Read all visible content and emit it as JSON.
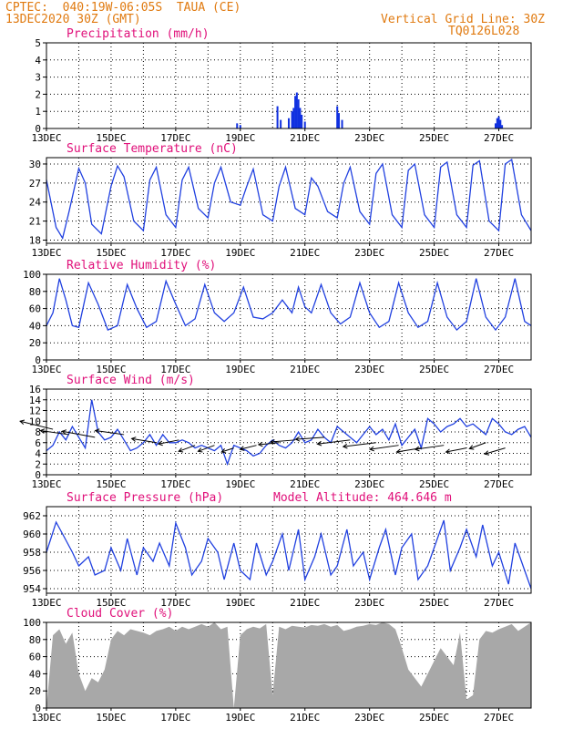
{
  "header": {
    "line1": "CPTEC:  040:19W-06:05S  TAUA (CE)",
    "line2": "13DEC2020 30Z (GMT)",
    "grid_note": "Vertical Grid Line: 30Z",
    "model_code": "TQ0126L028"
  },
  "colors": {
    "header_text": "#e07a10",
    "panel_title": "#e0107a",
    "series_line": "#2040e0",
    "precip_bar": "#1030e0",
    "cloud_fill": "#a8a8a8",
    "grid": "#000000"
  },
  "chart_data": [
    {
      "type": "bar",
      "title": "Precipitation (mm/h)",
      "ylim": [
        0,
        5
      ],
      "yticks": [
        0,
        1,
        2,
        3,
        4,
        5
      ],
      "xlim": [
        13,
        28
      ],
      "xticks": [
        "13DEC",
        "15DEC",
        "17DEC",
        "19DEC",
        "21DEC",
        "23DEC",
        "25DEC",
        "27DEC"
      ],
      "x": [
        18.9,
        19.0,
        20.15,
        20.25,
        20.5,
        20.6,
        20.65,
        20.7,
        20.75,
        20.8,
        20.85,
        20.9,
        21.0,
        22.0,
        22.05,
        22.15,
        26.9,
        26.95,
        27.0,
        27.05,
        27.1
      ],
      "values": [
        0.3,
        0.2,
        1.3,
        0.5,
        0.6,
        1.0,
        1.2,
        1.9,
        2.1,
        1.7,
        1.2,
        0.8,
        0.4,
        1.3,
        0.9,
        0.5,
        0.3,
        0.6,
        0.7,
        0.5,
        0.2
      ]
    },
    {
      "type": "line",
      "title": "Surface Temperature (nC)",
      "ylim": [
        17.5,
        31
      ],
      "yticks": [
        18,
        21,
        24,
        27,
        30
      ],
      "xlim": [
        13,
        28
      ],
      "xticks": [
        "13DEC",
        "15DEC",
        "17DEC",
        "19DEC",
        "21DEC",
        "23DEC",
        "25DEC",
        "27DEC"
      ],
      "x": [
        13.0,
        13.1,
        13.3,
        13.5,
        13.7,
        14.0,
        14.2,
        14.4,
        14.7,
        15.0,
        15.2,
        15.4,
        15.7,
        16.0,
        16.2,
        16.4,
        16.7,
        17.0,
        17.2,
        17.4,
        17.7,
        18.0,
        18.2,
        18.4,
        18.7,
        19.0,
        19.2,
        19.4,
        19.7,
        20.0,
        20.2,
        20.4,
        20.7,
        21.0,
        21.2,
        21.4,
        21.7,
        22.0,
        22.2,
        22.4,
        22.7,
        23.0,
        23.2,
        23.4,
        23.7,
        24.0,
        24.2,
        24.4,
        24.7,
        25.0,
        25.2,
        25.4,
        25.7,
        26.0,
        26.2,
        26.4,
        26.7,
        27.0,
        27.2,
        27.4,
        27.7,
        28.0
      ],
      "values": [
        27.5,
        25.0,
        20.0,
        18.3,
        22.5,
        29.3,
        27.0,
        20.5,
        19.0,
        26.5,
        29.7,
        28.0,
        21.0,
        19.5,
        27.5,
        29.5,
        22.0,
        20.0,
        27.5,
        29.5,
        23.0,
        21.5,
        27.0,
        29.5,
        24.0,
        23.5,
        26.5,
        29.2,
        22.0,
        21.0,
        26.5,
        29.5,
        23.0,
        22.0,
        27.8,
        26.5,
        22.5,
        21.5,
        27.0,
        29.5,
        22.5,
        20.5,
        28.5,
        30.0,
        22.0,
        20.0,
        29.0,
        30.0,
        22.0,
        20.0,
        29.5,
        30.3,
        22.0,
        20.0,
        29.8,
        30.5,
        21.0,
        19.5,
        30.0,
        30.7,
        22.0,
        19.5
      ]
    },
    {
      "type": "line",
      "title": "Relative Humidity (%)",
      "ylim": [
        0,
        100
      ],
      "yticks": [
        0,
        20,
        40,
        60,
        80,
        100
      ],
      "xlim": [
        13,
        28
      ],
      "xticks": [
        "13DEC",
        "15DEC",
        "17DEC",
        "19DEC",
        "21DEC",
        "23DEC",
        "25DEC",
        "27DEC"
      ],
      "x": [
        13.0,
        13.2,
        13.4,
        13.6,
        13.8,
        14.0,
        14.3,
        14.6,
        14.9,
        15.2,
        15.5,
        15.8,
        16.1,
        16.4,
        16.7,
        17.0,
        17.3,
        17.6,
        17.9,
        18.2,
        18.5,
        18.8,
        19.1,
        19.4,
        19.7,
        20.0,
        20.3,
        20.6,
        20.8,
        21.0,
        21.2,
        21.5,
        21.8,
        22.1,
        22.4,
        22.7,
        23.0,
        23.3,
        23.6,
        23.9,
        24.2,
        24.5,
        24.8,
        25.1,
        25.4,
        25.7,
        26.0,
        26.3,
        26.6,
        26.9,
        27.2,
        27.5,
        27.8,
        28.0
      ],
      "values": [
        40,
        55,
        95,
        70,
        40,
        38,
        90,
        65,
        35,
        40,
        88,
        60,
        38,
        45,
        92,
        65,
        40,
        48,
        88,
        55,
        45,
        55,
        85,
        50,
        48,
        55,
        70,
        55,
        85,
        62,
        55,
        88,
        55,
        42,
        50,
        90,
        55,
        38,
        45,
        90,
        55,
        38,
        45,
        90,
        50,
        35,
        45,
        95,
        50,
        35,
        50,
        95,
        45,
        40
      ]
    },
    {
      "type": "line",
      "title": "Surface Wind (m/s)",
      "ylim": [
        0,
        16
      ],
      "yticks": [
        0,
        2,
        4,
        6,
        8,
        10,
        12,
        14,
        16
      ],
      "xlim": [
        13,
        28
      ],
      "xticks": [
        "13DEC",
        "15DEC",
        "17DEC",
        "19DEC",
        "21DEC",
        "23DEC",
        "25DEC",
        "27DEC"
      ],
      "x": [
        13.0,
        13.2,
        13.4,
        13.6,
        13.8,
        14.0,
        14.2,
        14.4,
        14.6,
        14.8,
        15.0,
        15.2,
        15.4,
        15.6,
        15.8,
        16.0,
        16.2,
        16.4,
        16.6,
        16.8,
        17.0,
        17.2,
        17.4,
        17.6,
        17.8,
        18.0,
        18.2,
        18.4,
        18.6,
        18.8,
        19.0,
        19.2,
        19.4,
        19.6,
        19.8,
        20.0,
        20.2,
        20.4,
        20.6,
        20.8,
        21.0,
        21.2,
        21.4,
        21.6,
        21.8,
        22.0,
        22.2,
        22.4,
        22.6,
        22.8,
        23.0,
        23.2,
        23.4,
        23.6,
        23.8,
        24.0,
        24.2,
        24.4,
        24.6,
        24.8,
        25.0,
        25.2,
        25.4,
        25.6,
        25.8,
        26.0,
        26.2,
        26.4,
        26.6,
        26.8,
        27.0,
        27.2,
        27.4,
        27.6,
        27.8,
        28.0
      ],
      "values": [
        4.5,
        5.5,
        8.0,
        6.5,
        9.0,
        7.0,
        5.0,
        14.0,
        8.0,
        6.5,
        7.0,
        8.5,
        6.5,
        4.5,
        5.0,
        6.0,
        7.5,
        5.5,
        7.5,
        6.0,
        6.0,
        6.5,
        6.0,
        5.0,
        5.5,
        5.0,
        4.5,
        5.5,
        2.0,
        5.5,
        5.0,
        4.5,
        3.5,
        4.0,
        5.5,
        6.5,
        5.5,
        5.0,
        6.0,
        8.0,
        6.0,
        6.5,
        8.5,
        7.0,
        6.0,
        9.0,
        8.0,
        7.0,
        6.0,
        7.5,
        9.0,
        7.5,
        8.5,
        6.5,
        9.5,
        5.5,
        7.0,
        8.5,
        5.0,
        10.5,
        9.5,
        8.0,
        9.0,
        9.5,
        10.5,
        9.0,
        9.5,
        8.5,
        7.5,
        10.5,
        9.5,
        8.0,
        7.5,
        8.5,
        9.0,
        7.0
      ],
      "arrows_x": [
        13.2,
        13.7,
        14.5,
        15.4,
        16.4,
        17.1,
        17.6,
        18.2,
        18.8,
        19.5,
        20.2,
        20.7,
        21.6,
        22.4,
        23.2,
        23.9,
        24.6,
        25.3,
        26.0,
        26.6,
        27.2
      ],
      "arrows_y": [
        8.5,
        7.5,
        7.0,
        7.5,
        6.0,
        6.5,
        5.5,
        5.5,
        5.0,
        5.5,
        6.0,
        6.5,
        7.0,
        6.5,
        6.0,
        5.5,
        5.0,
        5.5,
        5.0,
        6.0,
        5.0
      ],
      "arrows_u": [
        -8,
        -7,
        -8,
        -7,
        -6,
        -5,
        -4,
        -4,
        -3,
        -4,
        -5,
        -6,
        -7,
        -8,
        -8,
        -7,
        -6,
        -7,
        -5,
        -4,
        -5
      ],
      "arrows_v": [
        4,
        2,
        3,
        2,
        2,
        -2,
        -3,
        -3,
        -2,
        -2,
        -1,
        -1,
        -1,
        -2,
        -2,
        -2,
        -2,
        -2,
        -2,
        -3,
        -3
      ]
    },
    {
      "type": "line",
      "title": "Surface Pressure (hPa)",
      "annotation": "Model Altitude: 464.646 m",
      "ylim": [
        953.5,
        963
      ],
      "yticks": [
        954,
        956,
        958,
        960,
        962
      ],
      "xlim": [
        13,
        28
      ],
      "xticks": [
        "13DEC",
        "15DEC",
        "17DEC",
        "19DEC",
        "21DEC",
        "23DEC",
        "25DEC",
        "27DEC"
      ],
      "x": [
        13.0,
        13.3,
        13.5,
        13.8,
        14.0,
        14.3,
        14.5,
        14.8,
        15.0,
        15.3,
        15.5,
        15.8,
        16.0,
        16.3,
        16.5,
        16.8,
        17.0,
        17.3,
        17.5,
        17.8,
        18.0,
        18.3,
        18.5,
        18.8,
        19.0,
        19.3,
        19.5,
        19.8,
        20.0,
        20.3,
        20.5,
        20.8,
        21.0,
        21.3,
        21.5,
        21.8,
        22.0,
        22.3,
        22.5,
        22.8,
        23.0,
        23.3,
        23.5,
        23.8,
        24.0,
        24.3,
        24.5,
        24.8,
        25.0,
        25.3,
        25.5,
        25.8,
        26.0,
        26.3,
        26.5,
        26.8,
        27.0,
        27.3,
        27.5,
        27.8,
        28.0
      ],
      "values": [
        958.0,
        961.3,
        960.0,
        958.0,
        956.5,
        957.5,
        955.5,
        956.0,
        958.5,
        956.0,
        959.5,
        955.5,
        958.5,
        957.0,
        959.0,
        956.5,
        961.2,
        958.5,
        955.5,
        957.0,
        959.5,
        958.0,
        955.0,
        959.0,
        956.0,
        955.0,
        959.0,
        955.5,
        957.0,
        960.0,
        956.0,
        960.5,
        955.0,
        957.5,
        960.0,
        955.5,
        956.5,
        960.5,
        956.5,
        958.0,
        955.0,
        958.5,
        960.5,
        955.5,
        958.5,
        960.0,
        955.0,
        956.5,
        958.5,
        961.5,
        956.0,
        958.5,
        960.5,
        957.5,
        961.0,
        956.5,
        958.0,
        954.5,
        959.0,
        956.0,
        954.0
      ]
    },
    {
      "type": "area",
      "title": "Cloud Cover (%)",
      "ylim": [
        0,
        100
      ],
      "yticks": [
        0,
        20,
        40,
        60,
        80,
        100
      ],
      "xlim": [
        13,
        28
      ],
      "xticks": [
        "13DEC",
        "15DEC",
        "17DEC",
        "19DEC",
        "21DEC",
        "23DEC",
        "25DEC",
        "27DEC"
      ],
      "x": [
        13.0,
        13.2,
        13.4,
        13.6,
        13.8,
        14.0,
        14.2,
        14.4,
        14.6,
        14.8,
        15.0,
        15.2,
        15.4,
        15.6,
        15.8,
        16.0,
        16.2,
        16.4,
        16.6,
        16.8,
        17.0,
        17.2,
        17.4,
        17.6,
        17.8,
        18.0,
        18.2,
        18.4,
        18.6,
        18.8,
        19.0,
        19.2,
        19.4,
        19.6,
        19.8,
        20.0,
        20.2,
        20.4,
        20.6,
        20.8,
        21.0,
        21.2,
        21.4,
        21.6,
        21.8,
        22.0,
        22.2,
        22.4,
        22.6,
        22.8,
        23.0,
        23.2,
        23.4,
        23.6,
        23.8,
        24.0,
        24.2,
        24.4,
        24.6,
        24.8,
        25.0,
        25.2,
        25.4,
        25.6,
        25.8,
        26.0,
        26.2,
        26.4,
        26.6,
        26.8,
        27.0,
        27.2,
        27.4,
        27.6,
        27.8,
        28.0
      ],
      "values": [
        0,
        85,
        92,
        75,
        88,
        40,
        20,
        35,
        30,
        45,
        80,
        90,
        85,
        92,
        90,
        88,
        85,
        90,
        92,
        95,
        90,
        95,
        92,
        95,
        98,
        95,
        100,
        92,
        95,
        0,
        85,
        92,
        95,
        93,
        98,
        15,
        95,
        92,
        96,
        95,
        94,
        97,
        96,
        98,
        95,
        97,
        90,
        92,
        95,
        96,
        98,
        97,
        100,
        98,
        92,
        70,
        45,
        35,
        25,
        40,
        55,
        70,
        60,
        50,
        88,
        10,
        15,
        80,
        90,
        88,
        92,
        95,
        98,
        90,
        95,
        100
      ]
    }
  ]
}
